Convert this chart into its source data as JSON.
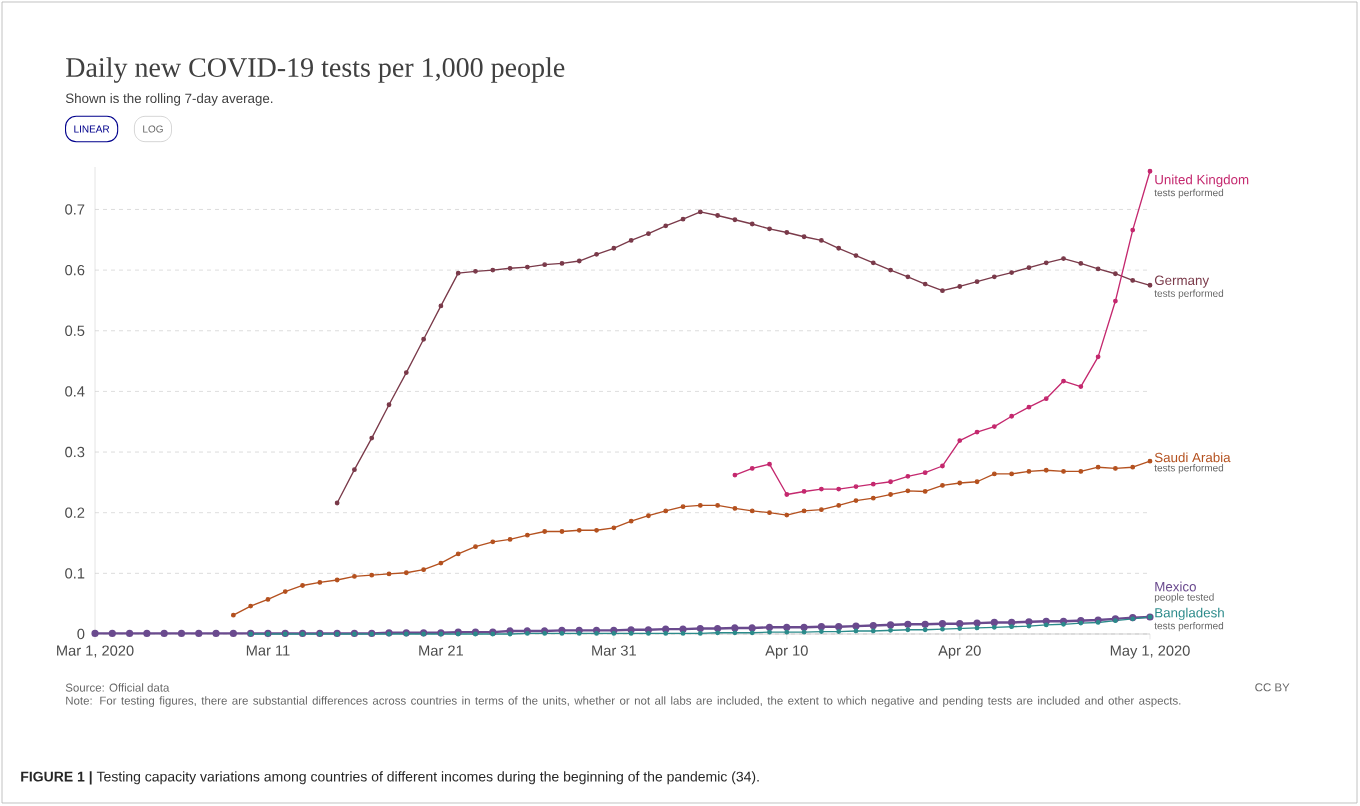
{
  "chart_data": {
    "type": "line",
    "title": "Daily new COVID-19 tests per 1,000 people",
    "subtitle": "Shown is the rolling 7-day average.",
    "xlim": [
      "2020-03-01",
      "2020-05-01"
    ],
    "ylim": [
      0,
      0.77
    ],
    "xticks": [
      {
        "value": "2020-03-01",
        "label": "Mar 1, 2020"
      },
      {
        "value": "2020-03-11",
        "label": "Mar 11"
      },
      {
        "value": "2020-03-21",
        "label": "Mar 21"
      },
      {
        "value": "2020-03-31",
        "label": "Mar 31"
      },
      {
        "value": "2020-04-10",
        "label": "Apr 10"
      },
      {
        "value": "2020-04-20",
        "label": "Apr 20"
      },
      {
        "value": "2020-05-01",
        "label": "May 1, 2020"
      }
    ],
    "yticks": [
      0,
      0.1,
      0.2,
      0.3,
      0.4,
      0.5,
      0.6,
      0.7
    ],
    "grid": "y",
    "marker": "circle",
    "line_style": "solid",
    "series": [
      {
        "name": "United Kingdom",
        "color": "#c4286e",
        "x": [
          "2020-04-07",
          "2020-04-08",
          "2020-04-09",
          "2020-04-10",
          "2020-04-11",
          "2020-04-12",
          "2020-04-13",
          "2020-04-14",
          "2020-04-15",
          "2020-04-16",
          "2020-04-17",
          "2020-04-18",
          "2020-04-19",
          "2020-04-20",
          "2020-04-21",
          "2020-04-22",
          "2020-04-23",
          "2020-04-24",
          "2020-04-25",
          "2020-04-26",
          "2020-04-27",
          "2020-04-28",
          "2020-04-29",
          "2020-04-30",
          "2020-05-01"
        ],
        "values": [
          0.262,
          0.273,
          0.28,
          0.23,
          0.235,
          0.239,
          0.239,
          0.243,
          0.247,
          0.251,
          0.26,
          0.266,
          0.277,
          0.319,
          0.333,
          0.342,
          0.359,
          0.374,
          0.388,
          0.417,
          0.408,
          0.457,
          0.549,
          0.666,
          0.763
        ]
      },
      {
        "name": "Germany",
        "color": "#7a3a4a",
        "x": [
          "2020-03-15",
          "2020-03-16",
          "2020-03-17",
          "2020-03-18",
          "2020-03-19",
          "2020-03-20",
          "2020-03-21",
          "2020-03-22",
          "2020-03-23",
          "2020-03-24",
          "2020-03-25",
          "2020-03-26",
          "2020-03-27",
          "2020-03-28",
          "2020-03-29",
          "2020-03-30",
          "2020-03-31",
          "2020-04-01",
          "2020-04-02",
          "2020-04-03",
          "2020-04-04",
          "2020-04-05",
          "2020-04-06",
          "2020-04-07",
          "2020-04-08",
          "2020-04-09",
          "2020-04-10",
          "2020-04-11",
          "2020-04-12",
          "2020-04-13",
          "2020-04-14",
          "2020-04-15",
          "2020-04-16",
          "2020-04-17",
          "2020-04-18",
          "2020-04-19",
          "2020-04-20",
          "2020-04-21",
          "2020-04-22",
          "2020-04-23",
          "2020-04-24",
          "2020-04-25",
          "2020-04-26",
          "2020-04-27",
          "2020-04-28",
          "2020-04-29",
          "2020-04-30",
          "2020-05-01"
        ],
        "values": [
          0.216,
          0.271,
          0.323,
          0.378,
          0.431,
          0.486,
          0.541,
          0.595,
          0.598,
          0.6,
          0.603,
          0.605,
          0.609,
          0.611,
          0.615,
          0.626,
          0.636,
          0.649,
          0.66,
          0.673,
          0.684,
          0.696,
          0.69,
          0.683,
          0.676,
          0.668,
          0.662,
          0.655,
          0.649,
          0.636,
          0.624,
          0.612,
          0.6,
          0.589,
          0.577,
          0.566,
          0.573,
          0.581,
          0.589,
          0.596,
          0.604,
          0.612,
          0.619,
          0.611,
          0.602,
          0.594,
          0.583,
          0.575
        ]
      },
      {
        "name": "Saudi Arabia",
        "color": "#b4511f",
        "x": [
          "2020-03-09",
          "2020-03-10",
          "2020-03-11",
          "2020-03-12",
          "2020-03-13",
          "2020-03-14",
          "2020-03-15",
          "2020-03-16",
          "2020-03-17",
          "2020-03-18",
          "2020-03-19",
          "2020-03-20",
          "2020-03-21",
          "2020-03-22",
          "2020-03-23",
          "2020-03-24",
          "2020-03-25",
          "2020-03-26",
          "2020-03-27",
          "2020-03-28",
          "2020-03-29",
          "2020-03-30",
          "2020-03-31",
          "2020-04-01",
          "2020-04-02",
          "2020-04-03",
          "2020-04-04",
          "2020-04-05",
          "2020-04-06",
          "2020-04-07",
          "2020-04-08",
          "2020-04-09",
          "2020-04-10",
          "2020-04-11",
          "2020-04-12",
          "2020-04-13",
          "2020-04-14",
          "2020-04-15",
          "2020-04-16",
          "2020-04-17",
          "2020-04-18",
          "2020-04-19",
          "2020-04-20",
          "2020-04-21",
          "2020-04-22",
          "2020-04-23",
          "2020-04-24",
          "2020-04-25",
          "2020-04-26",
          "2020-04-27",
          "2020-04-28",
          "2020-04-29",
          "2020-04-30",
          "2020-05-01"
        ],
        "values": [
          0.031,
          0.046,
          0.057,
          0.07,
          0.08,
          0.085,
          0.089,
          0.095,
          0.097,
          0.099,
          0.101,
          0.106,
          0.117,
          0.132,
          0.144,
          0.152,
          0.156,
          0.163,
          0.169,
          0.169,
          0.171,
          0.171,
          0.175,
          0.186,
          0.195,
          0.203,
          0.21,
          0.212,
          0.212,
          0.207,
          0.203,
          0.2,
          0.196,
          0.203,
          0.205,
          0.212,
          0.22,
          0.224,
          0.23,
          0.236,
          0.235,
          0.245,
          0.249,
          0.251,
          0.264,
          0.264,
          0.268,
          0.27,
          0.268,
          0.268,
          0.275,
          0.273,
          0.275,
          0.285
        ]
      },
      {
        "name": "Mexico",
        "color": "#6a4a8e",
        "x": [
          "2020-03-01",
          "2020-03-02",
          "2020-03-03",
          "2020-03-04",
          "2020-03-05",
          "2020-03-06",
          "2020-03-07",
          "2020-03-08",
          "2020-03-09",
          "2020-03-10",
          "2020-03-11",
          "2020-03-12",
          "2020-03-13",
          "2020-03-14",
          "2020-03-15",
          "2020-03-16",
          "2020-03-17",
          "2020-03-18",
          "2020-03-19",
          "2020-03-20",
          "2020-03-21",
          "2020-03-22",
          "2020-03-23",
          "2020-03-24",
          "2020-03-25",
          "2020-03-26",
          "2020-03-27",
          "2020-03-28",
          "2020-03-29",
          "2020-03-30",
          "2020-03-31",
          "2020-04-01",
          "2020-04-02",
          "2020-04-03",
          "2020-04-04",
          "2020-04-05",
          "2020-04-06",
          "2020-04-07",
          "2020-04-08",
          "2020-04-09",
          "2020-04-10",
          "2020-04-11",
          "2020-04-12",
          "2020-04-13",
          "2020-04-14",
          "2020-04-15",
          "2020-04-16",
          "2020-04-17",
          "2020-04-18",
          "2020-04-19",
          "2020-04-20",
          "2020-04-21",
          "2020-04-22",
          "2020-04-23",
          "2020-04-24",
          "2020-04-25",
          "2020-04-26",
          "2020-04-27",
          "2020-04-28",
          "2020-04-29",
          "2020-04-30",
          "2020-05-01"
        ],
        "values": [
          0.001,
          0.001,
          0.001,
          0.001,
          0.001,
          0.001,
          0.001,
          0.001,
          0.001,
          0.001,
          0.001,
          0.001,
          0.001,
          0.001,
          0.001,
          0.001,
          0.001,
          0.002,
          0.002,
          0.002,
          0.002,
          0.003,
          0.003,
          0.003,
          0.005,
          0.005,
          0.005,
          0.006,
          0.006,
          0.006,
          0.006,
          0.007,
          0.007,
          0.008,
          0.008,
          0.009,
          0.009,
          0.01,
          0.01,
          0.011,
          0.011,
          0.011,
          0.012,
          0.012,
          0.013,
          0.014,
          0.015,
          0.016,
          0.016,
          0.017,
          0.017,
          0.018,
          0.019,
          0.019,
          0.02,
          0.021,
          0.021,
          0.022,
          0.023,
          0.025,
          0.027,
          0.028
        ]
      },
      {
        "name": "Bangladesh",
        "color": "#2b8a8a",
        "x": [
          "2020-03-10",
          "2020-03-11",
          "2020-03-12",
          "2020-03-13",
          "2020-03-14",
          "2020-03-15",
          "2020-03-16",
          "2020-03-17",
          "2020-03-18",
          "2020-03-19",
          "2020-03-20",
          "2020-03-21",
          "2020-03-22",
          "2020-03-23",
          "2020-03-24",
          "2020-03-25",
          "2020-03-26",
          "2020-03-27",
          "2020-03-28",
          "2020-03-29",
          "2020-03-30",
          "2020-03-31",
          "2020-04-01",
          "2020-04-02",
          "2020-04-03",
          "2020-04-04",
          "2020-04-05",
          "2020-04-06",
          "2020-04-07",
          "2020-04-08",
          "2020-04-09",
          "2020-04-10",
          "2020-04-11",
          "2020-04-12",
          "2020-04-13",
          "2020-04-14",
          "2020-04-15",
          "2020-04-16",
          "2020-04-17",
          "2020-04-18",
          "2020-04-19",
          "2020-04-20",
          "2020-04-21",
          "2020-04-22",
          "2020-04-23",
          "2020-04-24",
          "2020-04-25",
          "2020-04-26",
          "2020-04-27",
          "2020-04-28",
          "2020-04-29",
          "2020-04-30",
          "2020-05-01"
        ],
        "values": [
          0.0,
          0.0,
          0.0,
          0.0,
          0.0,
          0.0,
          0.0,
          0.0,
          0.0,
          0.0,
          0.0,
          0.0,
          0.0,
          0.0,
          0.0,
          0.0,
          0.001,
          0.001,
          0.001,
          0.001,
          0.001,
          0.001,
          0.001,
          0.001,
          0.001,
          0.001,
          0.001,
          0.002,
          0.002,
          0.002,
          0.003,
          0.003,
          0.003,
          0.004,
          0.004,
          0.005,
          0.005,
          0.006,
          0.007,
          0.007,
          0.008,
          0.009,
          0.01,
          0.011,
          0.012,
          0.013,
          0.015,
          0.016,
          0.018,
          0.019,
          0.022,
          0.025,
          0.028
        ]
      }
    ],
    "annotations": [
      {
        "text": "tests performed",
        "x": "2020-05-01",
        "y": 0.763
      },
      {
        "text": "tests performed",
        "x": "2020-05-01",
        "y": 0.575
      },
      {
        "text": "tests performed",
        "x": "2020-05-01",
        "y": 0.285
      },
      {
        "text": "people tested",
        "x": "2020-05-01",
        "y": 0.028
      },
      {
        "text": "tests performed",
        "x": "2020-05-01",
        "y": 0.028
      },
      "LINEAR",
      "LOG",
      "Source: Official data",
      "Note: For testing figures, there are substantial differences across countries in terms of the units, whether or not all labs are included, the extent to which negative and pending tests are included and other aspects.",
      "CC BY",
      "**FIGURE 1 |** Testing capacity variations among countries of different incomes during the beginning of the pandemic (34)."
    ]
  }
}
